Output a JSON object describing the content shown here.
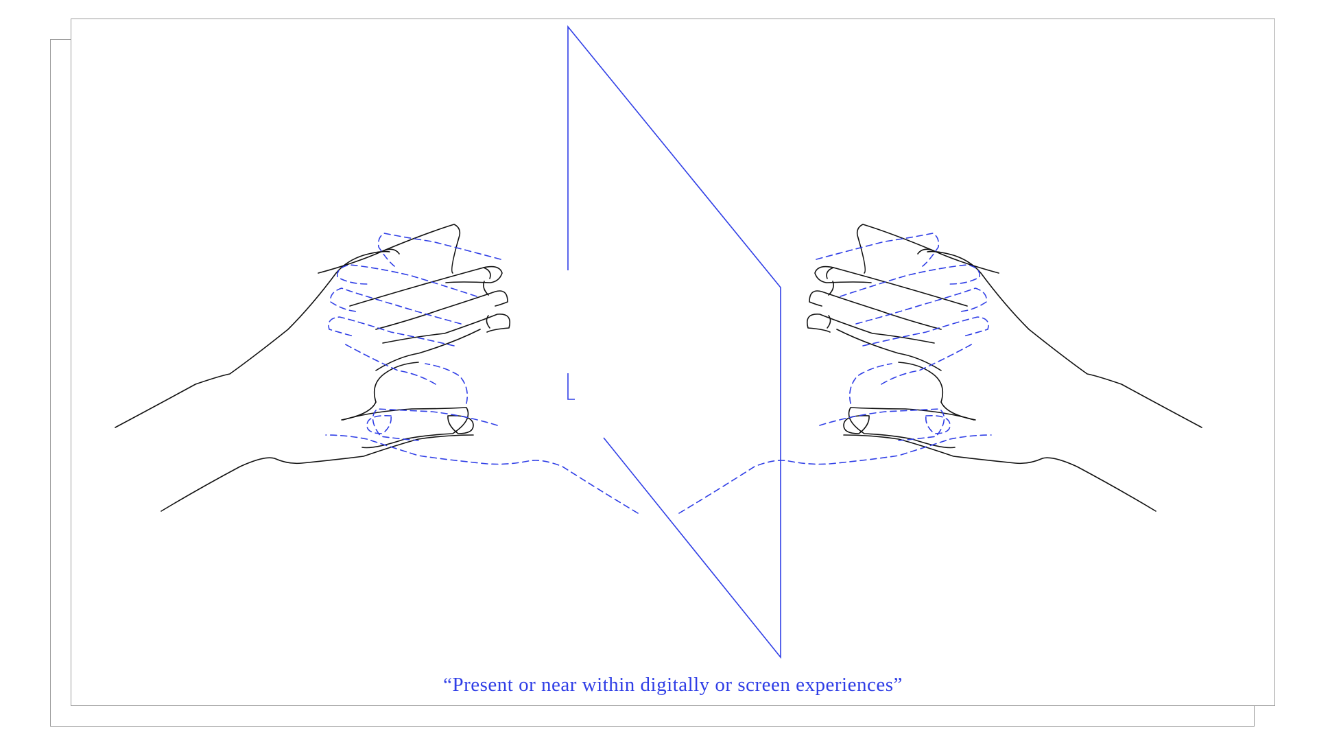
{
  "caption": {
    "text": "“Present or near within digitally or screen experiences”"
  },
  "colors": {
    "accent": "#2f3ee6",
    "ink": "#111111",
    "frame": "#9a9a9a",
    "background": "#ffffff"
  },
  "figure": {
    "subject": "left-hand-and-right-hand-with-mirrored-reflections",
    "plane": "screen-plane"
  }
}
